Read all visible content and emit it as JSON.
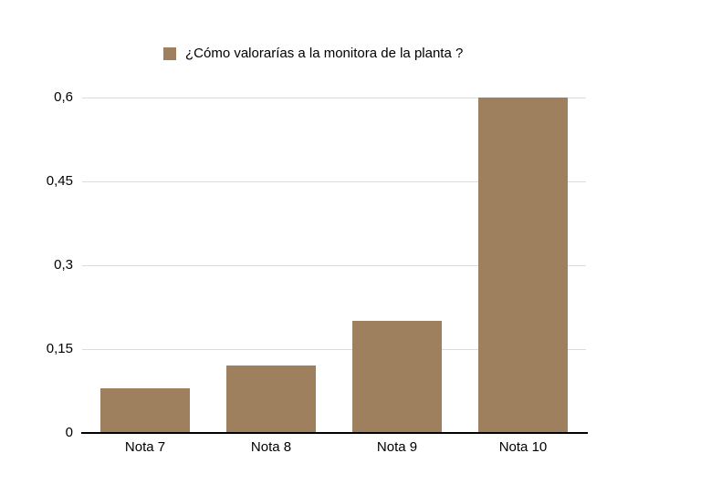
{
  "chart": {
    "colors": {
      "bar": "#9e7f5e",
      "gridline": "#dcdcdc",
      "axis": "#000000",
      "text": "#000000",
      "background": "#ffffff"
    }
  },
  "chart_data": {
    "type": "bar",
    "legend": "¿Cómo valorarías a la monitora de la planta ?",
    "legend_position": "top",
    "categories": [
      "Nota 7",
      "Nota 8",
      "Nota 9",
      "Nota 10"
    ],
    "values": [
      0.08,
      0.12,
      0.2,
      0.6
    ],
    "title": "",
    "xlabel": "",
    "ylabel": "",
    "ylim": [
      0,
      0.6
    ],
    "yticks": [
      0,
      0.15,
      0.3,
      0.45,
      0.6
    ],
    "ytick_labels": [
      "0",
      "0,15",
      "0,3",
      "0,45",
      "0,6"
    ],
    "grid": true
  }
}
